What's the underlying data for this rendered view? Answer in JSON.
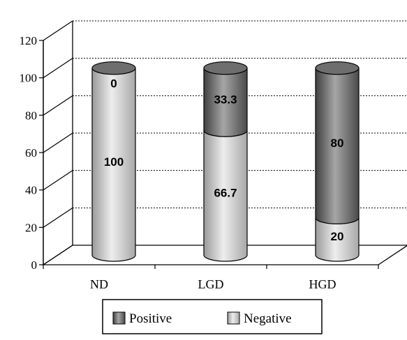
{
  "chart_data": {
    "type": "bar",
    "style": "3d-stacked-cylinder",
    "categories": [
      "ND",
      "LGD",
      "HGD"
    ],
    "series": [
      {
        "name": "Positive",
        "values": [
          0,
          33.3,
          80
        ],
        "labels": [
          "0",
          "33.3",
          "80"
        ],
        "color": "#808080"
      },
      {
        "name": "Negative",
        "values": [
          100,
          66.7,
          20
        ],
        "labels": [
          "100",
          "66.7",
          "20"
        ],
        "color": "#d6d6d6"
      }
    ],
    "ylim": [
      0,
      120
    ],
    "yticks": [
      0,
      20,
      40,
      60,
      80,
      100,
      120
    ],
    "ytick_labels": [
      "0",
      "20",
      "40",
      "60",
      "80",
      "100",
      "120"
    ],
    "grid": true,
    "legend_position": "bottom",
    "title": "",
    "xlabel": "",
    "ylabel": ""
  }
}
